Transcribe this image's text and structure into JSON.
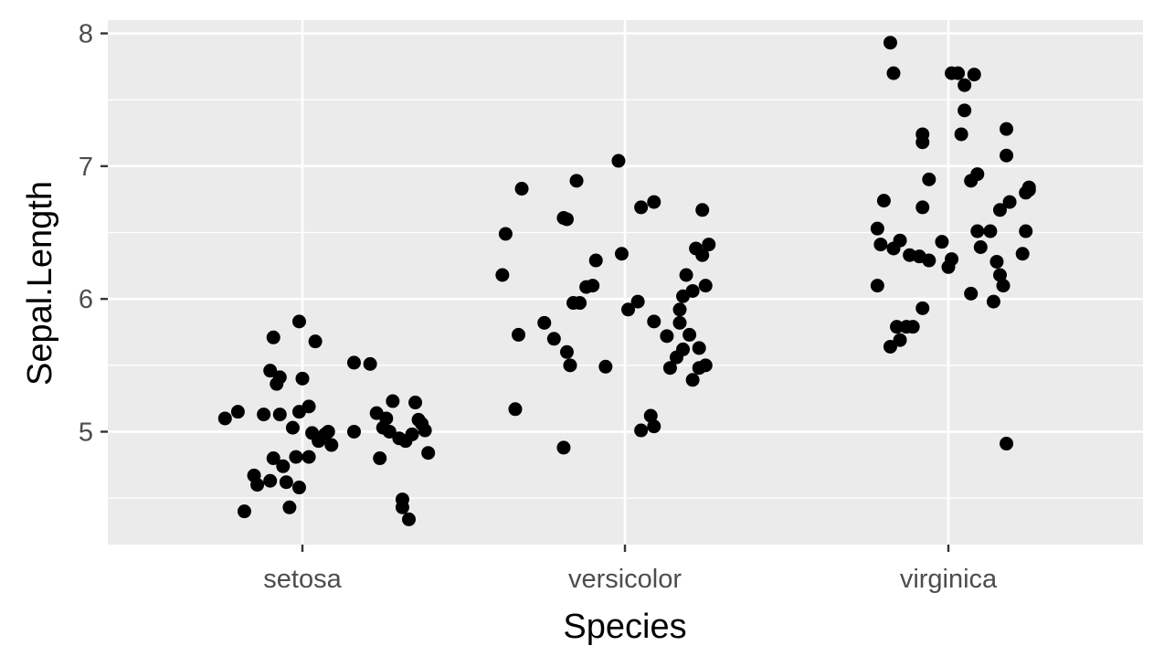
{
  "chart_data": {
    "type": "scatter",
    "title": "",
    "xlabel": "Species",
    "ylabel": "Sepal.Length",
    "categories": [
      "setosa",
      "versicolor",
      "virginica"
    ],
    "ylim": [
      4.15,
      8.1
    ],
    "yticks": [
      5,
      6,
      7,
      8
    ],
    "grid": true,
    "jitter": true,
    "point_color": "#000000",
    "panel_background": "#ebebeb",
    "grid_color": "#ffffff",
    "points": [
      {
        "category": "setosa",
        "offset": -0.24,
        "y": 5.1
      },
      {
        "category": "setosa",
        "offset": -0.2,
        "y": 5.15
      },
      {
        "category": "setosa",
        "offset": -0.18,
        "y": 4.4
      },
      {
        "category": "setosa",
        "offset": -0.15,
        "y": 4.67
      },
      {
        "category": "setosa",
        "offset": -0.14,
        "y": 4.6
      },
      {
        "category": "setosa",
        "offset": -0.12,
        "y": 5.13
      },
      {
        "category": "setosa",
        "offset": -0.1,
        "y": 5.46
      },
      {
        "category": "setosa",
        "offset": -0.1,
        "y": 4.63
      },
      {
        "category": "setosa",
        "offset": -0.09,
        "y": 4.8
      },
      {
        "category": "setosa",
        "offset": -0.09,
        "y": 5.71
      },
      {
        "category": "setosa",
        "offset": -0.08,
        "y": 5.36
      },
      {
        "category": "setosa",
        "offset": -0.07,
        "y": 5.41
      },
      {
        "category": "setosa",
        "offset": -0.07,
        "y": 5.13
      },
      {
        "category": "setosa",
        "offset": -0.06,
        "y": 4.74
      },
      {
        "category": "setosa",
        "offset": -0.05,
        "y": 4.62
      },
      {
        "category": "setosa",
        "offset": -0.04,
        "y": 4.43
      },
      {
        "category": "setosa",
        "offset": -0.03,
        "y": 5.03
      },
      {
        "category": "setosa",
        "offset": -0.02,
        "y": 4.81
      },
      {
        "category": "setosa",
        "offset": -0.01,
        "y": 5.83
      },
      {
        "category": "setosa",
        "offset": -0.01,
        "y": 5.15
      },
      {
        "category": "setosa",
        "offset": -0.01,
        "y": 4.58
      },
      {
        "category": "setosa",
        "offset": 0.0,
        "y": 5.4
      },
      {
        "category": "setosa",
        "offset": 0.02,
        "y": 5.19
      },
      {
        "category": "setosa",
        "offset": 0.02,
        "y": 4.81
      },
      {
        "category": "setosa",
        "offset": 0.03,
        "y": 4.99
      },
      {
        "category": "setosa",
        "offset": 0.04,
        "y": 5.68
      },
      {
        "category": "setosa",
        "offset": 0.05,
        "y": 4.93
      },
      {
        "category": "setosa",
        "offset": 0.07,
        "y": 4.98
      },
      {
        "category": "setosa",
        "offset": 0.08,
        "y": 5.0
      },
      {
        "category": "setosa",
        "offset": 0.09,
        "y": 4.9
      },
      {
        "category": "setosa",
        "offset": 0.16,
        "y": 5.0
      },
      {
        "category": "setosa",
        "offset": 0.16,
        "y": 5.52
      },
      {
        "category": "setosa",
        "offset": 0.21,
        "y": 5.51
      },
      {
        "category": "setosa",
        "offset": 0.23,
        "y": 5.14
      },
      {
        "category": "setosa",
        "offset": 0.24,
        "y": 4.8
      },
      {
        "category": "setosa",
        "offset": 0.25,
        "y": 5.03
      },
      {
        "category": "setosa",
        "offset": 0.26,
        "y": 5.1
      },
      {
        "category": "setosa",
        "offset": 0.27,
        "y": 5.0
      },
      {
        "category": "setosa",
        "offset": 0.28,
        "y": 5.23
      },
      {
        "category": "setosa",
        "offset": 0.3,
        "y": 4.95
      },
      {
        "category": "setosa",
        "offset": 0.31,
        "y": 4.49
      },
      {
        "category": "setosa",
        "offset": 0.31,
        "y": 4.43
      },
      {
        "category": "setosa",
        "offset": 0.32,
        "y": 4.93
      },
      {
        "category": "setosa",
        "offset": 0.33,
        "y": 4.34
      },
      {
        "category": "setosa",
        "offset": 0.34,
        "y": 4.98
      },
      {
        "category": "setosa",
        "offset": 0.35,
        "y": 5.22
      },
      {
        "category": "setosa",
        "offset": 0.36,
        "y": 5.09
      },
      {
        "category": "setosa",
        "offset": 0.37,
        "y": 5.06
      },
      {
        "category": "setosa",
        "offset": 0.38,
        "y": 5.01
      },
      {
        "category": "setosa",
        "offset": 0.39,
        "y": 4.84
      },
      {
        "category": "versicolor",
        "offset": -0.38,
        "y": 6.18
      },
      {
        "category": "versicolor",
        "offset": -0.37,
        "y": 6.49
      },
      {
        "category": "versicolor",
        "offset": -0.34,
        "y": 5.17
      },
      {
        "category": "versicolor",
        "offset": -0.33,
        "y": 5.73
      },
      {
        "category": "versicolor",
        "offset": -0.32,
        "y": 6.83
      },
      {
        "category": "versicolor",
        "offset": -0.25,
        "y": 5.82
      },
      {
        "category": "versicolor",
        "offset": -0.22,
        "y": 5.7
      },
      {
        "category": "versicolor",
        "offset": -0.19,
        "y": 6.61
      },
      {
        "category": "versicolor",
        "offset": -0.19,
        "y": 4.88
      },
      {
        "category": "versicolor",
        "offset": -0.18,
        "y": 6.6
      },
      {
        "category": "versicolor",
        "offset": -0.18,
        "y": 5.6
      },
      {
        "category": "versicolor",
        "offset": -0.17,
        "y": 5.5
      },
      {
        "category": "versicolor",
        "offset": -0.16,
        "y": 5.97
      },
      {
        "category": "versicolor",
        "offset": -0.15,
        "y": 6.89
      },
      {
        "category": "versicolor",
        "offset": -0.14,
        "y": 5.97
      },
      {
        "category": "versicolor",
        "offset": -0.12,
        "y": 6.09
      },
      {
        "category": "versicolor",
        "offset": -0.1,
        "y": 6.1
      },
      {
        "category": "versicolor",
        "offset": -0.09,
        "y": 6.29
      },
      {
        "category": "versicolor",
        "offset": -0.06,
        "y": 5.49
      },
      {
        "category": "versicolor",
        "offset": -0.02,
        "y": 7.04
      },
      {
        "category": "versicolor",
        "offset": -0.01,
        "y": 6.34
      },
      {
        "category": "versicolor",
        "offset": 0.01,
        "y": 5.92
      },
      {
        "category": "versicolor",
        "offset": 0.04,
        "y": 5.98
      },
      {
        "category": "versicolor",
        "offset": 0.05,
        "y": 6.69
      },
      {
        "category": "versicolor",
        "offset": 0.05,
        "y": 5.01
      },
      {
        "category": "versicolor",
        "offset": 0.08,
        "y": 5.12
      },
      {
        "category": "versicolor",
        "offset": 0.09,
        "y": 5.83
      },
      {
        "category": "versicolor",
        "offset": 0.09,
        "y": 6.73
      },
      {
        "category": "versicolor",
        "offset": 0.09,
        "y": 5.04
      },
      {
        "category": "versicolor",
        "offset": 0.13,
        "y": 5.72
      },
      {
        "category": "versicolor",
        "offset": 0.14,
        "y": 5.48
      },
      {
        "category": "versicolor",
        "offset": 0.16,
        "y": 5.56
      },
      {
        "category": "versicolor",
        "offset": 0.17,
        "y": 5.82
      },
      {
        "category": "versicolor",
        "offset": 0.17,
        "y": 5.92
      },
      {
        "category": "versicolor",
        "offset": 0.18,
        "y": 5.62
      },
      {
        "category": "versicolor",
        "offset": 0.18,
        "y": 6.02
      },
      {
        "category": "versicolor",
        "offset": 0.19,
        "y": 6.18
      },
      {
        "category": "versicolor",
        "offset": 0.2,
        "y": 5.73
      },
      {
        "category": "versicolor",
        "offset": 0.21,
        "y": 6.06
      },
      {
        "category": "versicolor",
        "offset": 0.21,
        "y": 5.39
      },
      {
        "category": "versicolor",
        "offset": 0.22,
        "y": 6.38
      },
      {
        "category": "versicolor",
        "offset": 0.23,
        "y": 5.63
      },
      {
        "category": "versicolor",
        "offset": 0.23,
        "y": 5.48
      },
      {
        "category": "versicolor",
        "offset": 0.24,
        "y": 6.33
      },
      {
        "category": "versicolor",
        "offset": 0.24,
        "y": 6.67
      },
      {
        "category": "versicolor",
        "offset": 0.25,
        "y": 6.1
      },
      {
        "category": "versicolor",
        "offset": 0.25,
        "y": 5.5
      },
      {
        "category": "versicolor",
        "offset": 0.26,
        "y": 6.41
      },
      {
        "category": "virginica",
        "offset": -0.22,
        "y": 6.1
      },
      {
        "category": "virginica",
        "offset": -0.22,
        "y": 6.53
      },
      {
        "category": "virginica",
        "offset": -0.21,
        "y": 6.41
      },
      {
        "category": "virginica",
        "offset": -0.2,
        "y": 6.74
      },
      {
        "category": "virginica",
        "offset": -0.18,
        "y": 5.64
      },
      {
        "category": "virginica",
        "offset": -0.18,
        "y": 7.93
      },
      {
        "category": "virginica",
        "offset": -0.17,
        "y": 7.7
      },
      {
        "category": "virginica",
        "offset": -0.17,
        "y": 6.38
      },
      {
        "category": "virginica",
        "offset": -0.16,
        "y": 5.79
      },
      {
        "category": "virginica",
        "offset": -0.15,
        "y": 5.69
      },
      {
        "category": "virginica",
        "offset": -0.15,
        "y": 6.44
      },
      {
        "category": "virginica",
        "offset": -0.13,
        "y": 5.79
      },
      {
        "category": "virginica",
        "offset": -0.12,
        "y": 6.33
      },
      {
        "category": "virginica",
        "offset": -0.11,
        "y": 5.79
      },
      {
        "category": "virginica",
        "offset": -0.09,
        "y": 6.32
      },
      {
        "category": "virginica",
        "offset": -0.08,
        "y": 5.93
      },
      {
        "category": "virginica",
        "offset": -0.08,
        "y": 7.24
      },
      {
        "category": "virginica",
        "offset": -0.08,
        "y": 7.18
      },
      {
        "category": "virginica",
        "offset": -0.08,
        "y": 6.69
      },
      {
        "category": "virginica",
        "offset": -0.06,
        "y": 6.9
      },
      {
        "category": "virginica",
        "offset": -0.06,
        "y": 6.29
      },
      {
        "category": "virginica",
        "offset": -0.02,
        "y": 6.43
      },
      {
        "category": "virginica",
        "offset": 0.0,
        "y": 6.24
      },
      {
        "category": "virginica",
        "offset": 0.01,
        "y": 6.3
      },
      {
        "category": "virginica",
        "offset": 0.01,
        "y": 7.7
      },
      {
        "category": "virginica",
        "offset": 0.03,
        "y": 7.7
      },
      {
        "category": "virginica",
        "offset": 0.04,
        "y": 7.24
      },
      {
        "category": "virginica",
        "offset": 0.05,
        "y": 7.61
      },
      {
        "category": "virginica",
        "offset": 0.05,
        "y": 7.42
      },
      {
        "category": "virginica",
        "offset": 0.07,
        "y": 6.89
      },
      {
        "category": "virginica",
        "offset": 0.07,
        "y": 6.04
      },
      {
        "category": "virginica",
        "offset": 0.08,
        "y": 7.69
      },
      {
        "category": "virginica",
        "offset": 0.09,
        "y": 6.51
      },
      {
        "category": "virginica",
        "offset": 0.09,
        "y": 6.94
      },
      {
        "category": "virginica",
        "offset": 0.1,
        "y": 6.39
      },
      {
        "category": "virginica",
        "offset": 0.13,
        "y": 6.51
      },
      {
        "category": "virginica",
        "offset": 0.14,
        "y": 5.98
      },
      {
        "category": "virginica",
        "offset": 0.15,
        "y": 6.28
      },
      {
        "category": "virginica",
        "offset": 0.16,
        "y": 6.67
      },
      {
        "category": "virginica",
        "offset": 0.16,
        "y": 6.18
      },
      {
        "category": "virginica",
        "offset": 0.17,
        "y": 6.1
      },
      {
        "category": "virginica",
        "offset": 0.18,
        "y": 4.91
      },
      {
        "category": "virginica",
        "offset": 0.18,
        "y": 7.08
      },
      {
        "category": "virginica",
        "offset": 0.18,
        "y": 7.28
      },
      {
        "category": "virginica",
        "offset": 0.19,
        "y": 6.73
      },
      {
        "category": "virginica",
        "offset": 0.23,
        "y": 6.34
      },
      {
        "category": "virginica",
        "offset": 0.24,
        "y": 6.51
      },
      {
        "category": "virginica",
        "offset": 0.24,
        "y": 6.8
      },
      {
        "category": "virginica",
        "offset": 0.25,
        "y": 6.82
      },
      {
        "category": "virginica",
        "offset": 0.25,
        "y": 6.84
      }
    ]
  }
}
